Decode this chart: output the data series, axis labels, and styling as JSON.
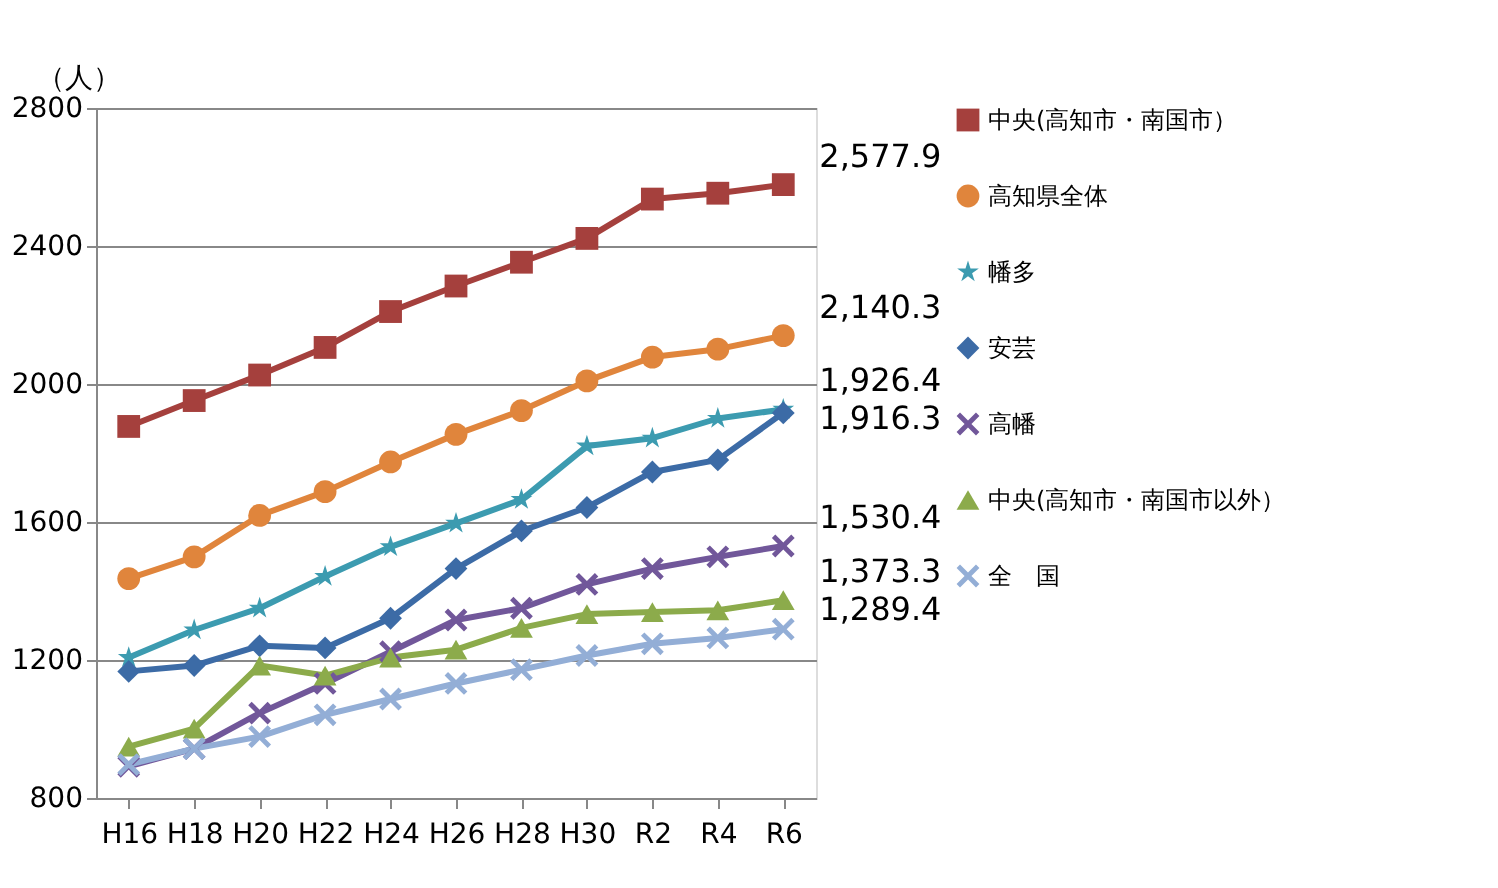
{
  "chart_data": {
    "type": "line",
    "ylabel": "（人）",
    "categories": [
      "H16",
      "H18",
      "H20",
      "H22",
      "H24",
      "H26",
      "H28",
      "H30",
      "R2",
      "R4",
      "R6"
    ],
    "ylim": [
      800,
      2800
    ],
    "yticks": [
      800,
      1200,
      1600,
      2000,
      2400,
      2800
    ],
    "grid": "y",
    "legend": "right",
    "series": [
      {
        "name": "中央(高知市・南国市）",
        "color": "#a5403d",
        "marker": "square",
        "values": [
          1877,
          1952,
          2026,
          2106,
          2210,
          2284,
          2353,
          2422,
          2536,
          2553,
          2577.9
        ],
        "value_labels": [
          null,
          null,
          null,
          null,
          null,
          null,
          null,
          null,
          null,
          null,
          "2,577.9"
        ]
      },
      {
        "name": "高知県全体",
        "color": "#e0853c",
        "marker": "circle",
        "values": [
          1436,
          1499,
          1619,
          1688,
          1774,
          1854,
          1923,
          2009,
          2078,
          2101,
          2140.3
        ],
        "value_labels": [
          null,
          null,
          null,
          null,
          null,
          null,
          null,
          null,
          null,
          null,
          "2,140.3"
        ]
      },
      {
        "name": "幡多",
        "color": "#3c9bb0",
        "marker": "star",
        "values": [
          1207,
          1287,
          1350,
          1442,
          1528,
          1596,
          1665,
          1820,
          1843,
          1900,
          1926.4
        ],
        "value_labels": [
          null,
          null,
          null,
          null,
          null,
          null,
          null,
          null,
          null,
          null,
          "1,926.4"
        ]
      },
      {
        "name": "安芸",
        "color": "#3c6ba6",
        "marker": "diamond",
        "values": [
          1167,
          1184,
          1241,
          1235,
          1321,
          1465,
          1574,
          1642,
          1745,
          1780,
          1916.3
        ],
        "value_labels": [
          null,
          null,
          null,
          null,
          null,
          null,
          null,
          null,
          null,
          null,
          "1,916.3"
        ]
      },
      {
        "name": "高幡",
        "color": "#71579a",
        "marker": "cross",
        "values": [
          892,
          943,
          1046,
          1132,
          1224,
          1316,
          1350,
          1419,
          1465,
          1499,
          1530.4
        ],
        "value_labels": [
          null,
          null,
          null,
          null,
          null,
          null,
          null,
          null,
          null,
          null,
          "1,530.4"
        ]
      },
      {
        "name": "中央(高知市・南国市以外）",
        "color": "#8cab4b",
        "marker": "triangle",
        "values": [
          949,
          1001,
          1184,
          1155,
          1207,
          1230,
          1293,
          1333,
          1339,
          1344,
          1373.3
        ],
        "value_labels": [
          null,
          null,
          null,
          null,
          null,
          null,
          null,
          null,
          null,
          null,
          "1,373.3"
        ]
      },
      {
        "name": "全　国",
        "color": "#93aed6",
        "marker": "cross",
        "values": [
          897,
          943,
          978,
          1041,
          1087,
          1132,
          1172,
          1213,
          1247,
          1264,
          1289.4
        ],
        "value_labels": [
          null,
          null,
          null,
          null,
          null,
          null,
          null,
          null,
          null,
          null,
          "1,289.4"
        ]
      }
    ]
  }
}
